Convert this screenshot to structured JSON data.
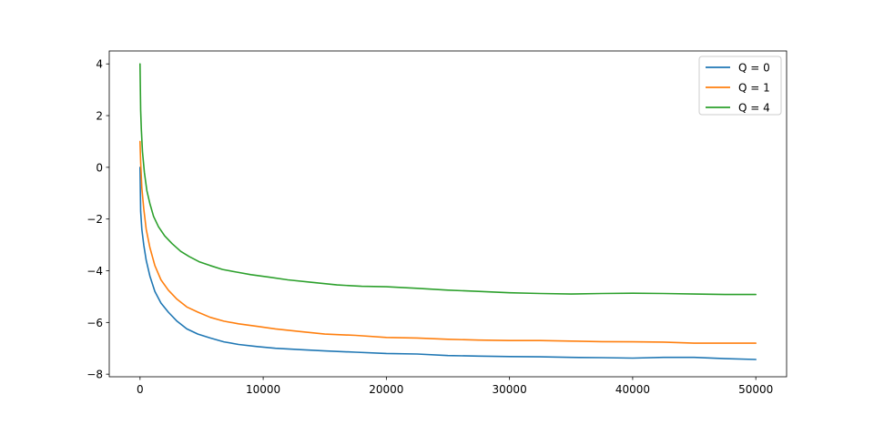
{
  "chart_data": {
    "type": "line",
    "title": "",
    "xlabel": "",
    "ylabel": "",
    "xlim": [
      -2500,
      52500
    ],
    "ylim": [
      -8.1,
      4.5
    ],
    "x_ticks": [
      0,
      10000,
      20000,
      30000,
      40000,
      50000
    ],
    "x_tick_labels": [
      "0",
      "10000",
      "20000",
      "30000",
      "40000",
      "50000"
    ],
    "y_ticks": [
      4,
      2,
      0,
      -2,
      -4,
      -6,
      -8
    ],
    "y_tick_labels": [
      "4",
      "2",
      "0",
      "−2",
      "−4",
      "−6",
      "−8"
    ],
    "grid": false,
    "legend_position": "top-right",
    "series": [
      {
        "name": "Q = 0",
        "color": "#1f77b4",
        "x": [
          0,
          50,
          150,
          300,
          500,
          800,
          1200,
          1700,
          2300,
          3000,
          3800,
          4700,
          5700,
          6800,
          8000,
          9500,
          11000,
          13000,
          15000,
          17500,
          20000,
          22500,
          25000,
          27500,
          30000,
          32500,
          35000,
          37500,
          40000,
          42500,
          45000,
          47500,
          50000
        ],
        "y": [
          0.0,
          -1.7,
          -2.4,
          -3.0,
          -3.6,
          -4.2,
          -4.8,
          -5.25,
          -5.6,
          -5.95,
          -6.25,
          -6.45,
          -6.6,
          -6.75,
          -6.85,
          -6.93,
          -7.0,
          -7.05,
          -7.1,
          -7.15,
          -7.2,
          -7.22,
          -7.28,
          -7.3,
          -7.32,
          -7.33,
          -7.35,
          -7.36,
          -7.38,
          -7.35,
          -7.35,
          -7.4,
          -7.43
        ]
      },
      {
        "name": "Q = 1",
        "color": "#ff7f0e",
        "x": [
          0,
          50,
          150,
          300,
          500,
          800,
          1200,
          1700,
          2300,
          3000,
          3800,
          4700,
          5700,
          6800,
          8000,
          9500,
          11000,
          13000,
          15000,
          17500,
          20000,
          22500,
          25000,
          27500,
          30000,
          32500,
          35000,
          37500,
          40000,
          42500,
          45000,
          47500,
          50000
        ],
        "y": [
          1.0,
          0.2,
          -0.8,
          -1.6,
          -2.4,
          -3.1,
          -3.8,
          -4.35,
          -4.75,
          -5.1,
          -5.4,
          -5.6,
          -5.8,
          -5.95,
          -6.05,
          -6.15,
          -6.25,
          -6.35,
          -6.45,
          -6.5,
          -6.58,
          -6.6,
          -6.65,
          -6.68,
          -6.7,
          -6.7,
          -6.72,
          -6.74,
          -6.75,
          -6.76,
          -6.8,
          -6.8,
          -6.8
        ]
      },
      {
        "name": "Q = 4",
        "color": "#2ca02c",
        "x": [
          0,
          50,
          100,
          200,
          350,
          550,
          800,
          1100,
          1500,
          2000,
          2600,
          3300,
          4000,
          4800,
          5700,
          6700,
          7800,
          9000,
          10500,
          12000,
          14000,
          16000,
          18000,
          20000,
          22500,
          25000,
          27500,
          30000,
          32500,
          35000,
          37500,
          40000,
          42500,
          45000,
          47500,
          50000
        ],
        "y": [
          4.0,
          2.2,
          1.5,
          0.6,
          -0.2,
          -0.9,
          -1.4,
          -1.9,
          -2.3,
          -2.65,
          -2.95,
          -3.25,
          -3.45,
          -3.65,
          -3.8,
          -3.95,
          -4.05,
          -4.15,
          -4.25,
          -4.35,
          -4.45,
          -4.55,
          -4.6,
          -4.62,
          -4.68,
          -4.75,
          -4.8,
          -4.85,
          -4.88,
          -4.9,
          -4.88,
          -4.87,
          -4.88,
          -4.9,
          -4.92,
          -4.92
        ]
      }
    ]
  }
}
